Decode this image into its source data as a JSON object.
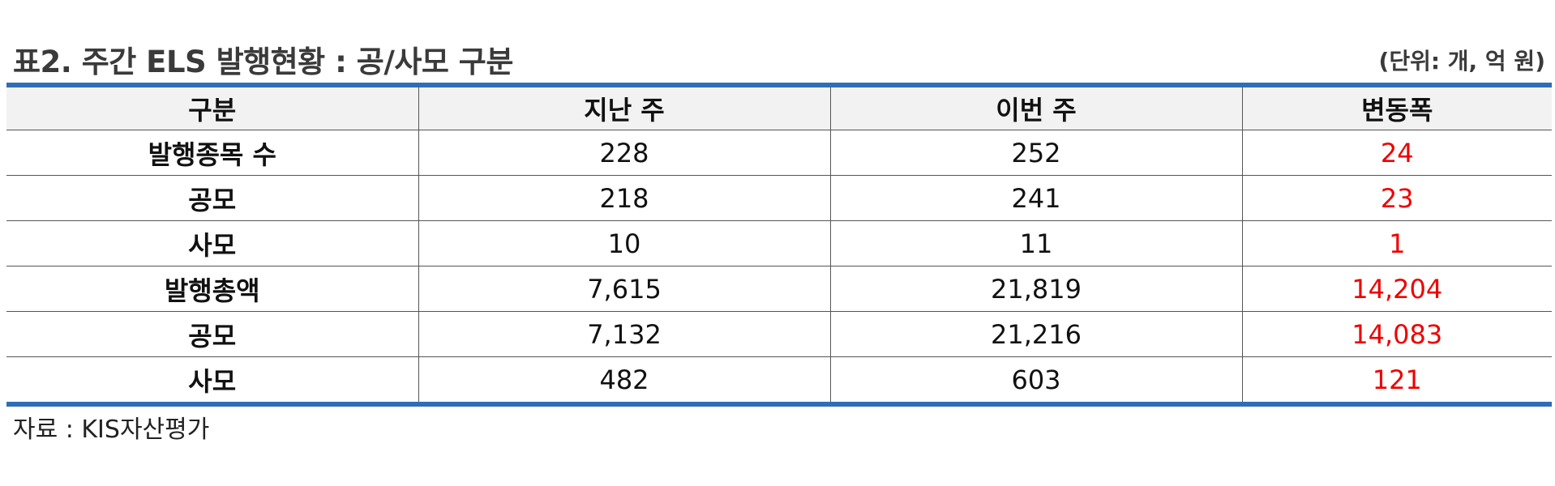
{
  "title": "표2. 주간 ELS 발행현황 : 공/사모 구분",
  "unit": "(단위: 개, 억 원)",
  "table": {
    "headers": [
      "구분",
      "지난 주",
      "이번 주",
      "변동폭"
    ],
    "rows": [
      {
        "label": "발행종목 수",
        "last_week": "228",
        "this_week": "252",
        "change": "24"
      },
      {
        "label": "공모",
        "last_week": "218",
        "this_week": "241",
        "change": "23"
      },
      {
        "label": "사모",
        "last_week": "10",
        "this_week": "11",
        "change": "1"
      },
      {
        "label": "발행총액",
        "last_week": "7,615",
        "this_week": "21,819",
        "change": "14,204"
      },
      {
        "label": "공모",
        "last_week": "7,132",
        "this_week": "21,216",
        "change": "14,083"
      },
      {
        "label": "사모",
        "last_week": "482",
        "this_week": "603",
        "change": "121"
      }
    ]
  },
  "source": "자료 : KIS자산평가",
  "colors": {
    "accent": "#2f6db5",
    "delta": "#ee0000",
    "header_bg": "#f2f2f2"
  }
}
